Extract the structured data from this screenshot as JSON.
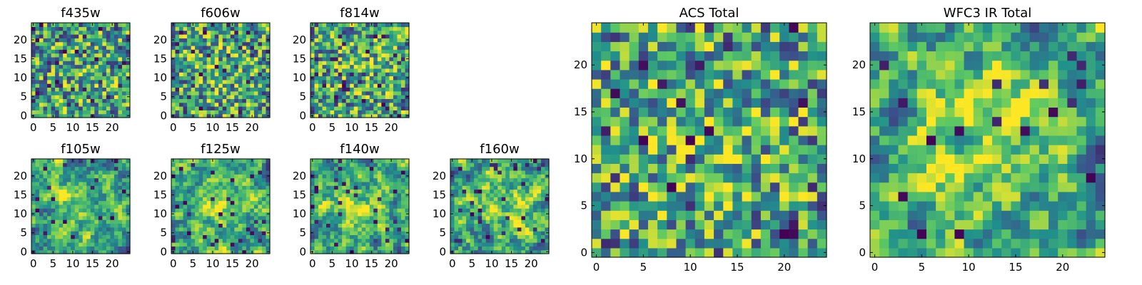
{
  "figure": {
    "colormap": [
      "#440154",
      "#3b528b",
      "#21918c",
      "#5ec962",
      "#fde725"
    ],
    "background": "#ffffff"
  },
  "chart_data": [
    {
      "type": "heatmap",
      "title": "f435w",
      "grid_size": 25,
      "xlim": [
        -0.5,
        24.5
      ],
      "ylim": [
        -0.5,
        24.5
      ],
      "xticks": [
        0,
        5,
        10,
        15,
        20
      ],
      "yticks": [
        0,
        5,
        10,
        15,
        20
      ],
      "texture": "fine_noise",
      "seed": 11,
      "center_brightness": 0.05,
      "dark_fraction": 0.05,
      "values": []
    },
    {
      "type": "heatmap",
      "title": "f606w",
      "grid_size": 25,
      "xlim": [
        -0.5,
        24.5
      ],
      "ylim": [
        -0.5,
        24.5
      ],
      "xticks": [
        0,
        5,
        10,
        15,
        20
      ],
      "yticks": [
        0,
        5,
        10,
        15,
        20
      ],
      "texture": "fine_noise",
      "seed": 23,
      "center_brightness": 0.08,
      "dark_fraction": 0.05,
      "values": []
    },
    {
      "type": "heatmap",
      "title": "f814w",
      "grid_size": 25,
      "xlim": [
        -0.5,
        24.5
      ],
      "ylim": [
        -0.5,
        24.5
      ],
      "xticks": [
        0,
        5,
        10,
        15,
        20
      ],
      "yticks": [
        0,
        5,
        10,
        15,
        20
      ],
      "texture": "fine_noise",
      "seed": 37,
      "center_brightness": 0.1,
      "dark_fraction": 0.05,
      "values": []
    },
    {
      "type": "heatmap",
      "title": "f105w",
      "grid_size": 25,
      "xlim": [
        -0.5,
        24.5
      ],
      "ylim": [
        -0.5,
        24.5
      ],
      "xticks": [
        0,
        5,
        10,
        15,
        20
      ],
      "yticks": [
        0,
        5,
        10,
        15,
        20
      ],
      "texture": "smooth_blobs",
      "seed": 41,
      "center_brightness": 0.2,
      "dark_fraction": 0.04,
      "values": []
    },
    {
      "type": "heatmap",
      "title": "f125w",
      "grid_size": 25,
      "xlim": [
        -0.5,
        24.5
      ],
      "ylim": [
        -0.5,
        24.5
      ],
      "xticks": [
        0,
        5,
        10,
        15,
        20
      ],
      "yticks": [
        0,
        5,
        10,
        15,
        20
      ],
      "texture": "smooth_blobs",
      "seed": 53,
      "center_brightness": 0.22,
      "dark_fraction": 0.04,
      "values": []
    },
    {
      "type": "heatmap",
      "title": "f140w",
      "grid_size": 25,
      "xlim": [
        -0.5,
        24.5
      ],
      "ylim": [
        -0.5,
        24.5
      ],
      "xticks": [
        0,
        5,
        10,
        15,
        20
      ],
      "yticks": [
        0,
        5,
        10,
        15,
        20
      ],
      "texture": "smooth_blobs",
      "seed": 67,
      "center_brightness": 0.22,
      "dark_fraction": 0.04,
      "values": []
    },
    {
      "type": "heatmap",
      "title": "f160w",
      "grid_size": 25,
      "xlim": [
        -0.5,
        24.5
      ],
      "ylim": [
        -0.5,
        24.5
      ],
      "xticks": [
        0,
        5,
        10,
        15,
        20
      ],
      "yticks": [
        0,
        5,
        10,
        15,
        20
      ],
      "texture": "smooth_blobs",
      "seed": 79,
      "center_brightness": 0.25,
      "dark_fraction": 0.05,
      "values": []
    },
    {
      "type": "heatmap",
      "title": "ACS Total",
      "grid_size": 25,
      "xlim": [
        -0.5,
        24.5
      ],
      "ylim": [
        -0.5,
        24.5
      ],
      "xticks": [
        0,
        5,
        10,
        15,
        20
      ],
      "yticks": [
        0,
        5,
        10,
        15,
        20
      ],
      "texture": "fine_noise",
      "seed": 97,
      "center_brightness": 0.15,
      "dark_fraction": 0.04,
      "values": []
    },
    {
      "type": "heatmap",
      "title": "WFC3 IR Total",
      "grid_size": 25,
      "xlim": [
        -0.5,
        24.5
      ],
      "ylim": [
        -0.5,
        24.5
      ],
      "xticks": [
        0,
        5,
        10,
        15,
        20
      ],
      "yticks": [
        0,
        5,
        10,
        15,
        20
      ],
      "texture": "smooth_blobs",
      "seed": 113,
      "center_brightness": 0.3,
      "dark_fraction": 0.04,
      "values": []
    }
  ]
}
